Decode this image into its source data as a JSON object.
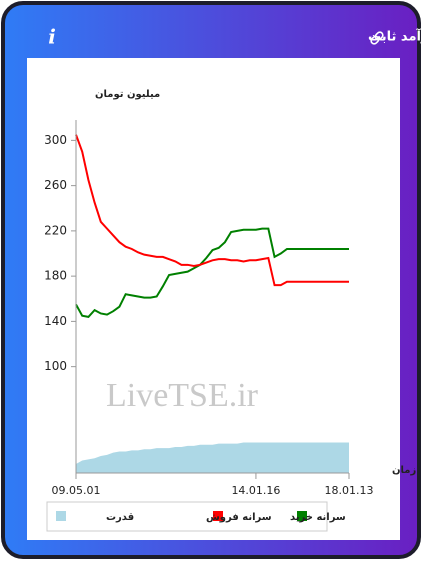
{
  "chart_data": {
    "type": "line",
    "title": "سرانه ی خرید و فروش حقیقی در صندوق های درآمد ثابت",
    "ylabel": "میلیون تومان",
    "xlabel": "زمان",
    "watermark": "LiveTSE.ir",
    "categories": [
      "09.05.01",
      null,
      null,
      null,
      null,
      null,
      null,
      null,
      null,
      null,
      null,
      null,
      null,
      null,
      null,
      null,
      null,
      null,
      null,
      null,
      null,
      null,
      null,
      null,
      null,
      null,
      null,
      null,
      null,
      "14.01.16",
      null,
      null,
      null,
      null,
      null,
      null,
      null,
      null,
      null,
      null,
      null,
      null,
      null,
      null,
      "18.01.13"
    ],
    "ylim": [
      6,
      318
    ],
    "yticks": [
      100,
      140,
      180,
      220,
      260,
      300
    ],
    "series": [
      {
        "name": "سرانه خرید",
        "color": "#008000",
        "values": [
          155,
          145,
          144,
          150,
          147,
          146,
          149,
          153,
          164,
          163,
          162,
          161,
          161,
          162,
          171,
          181,
          182,
          183,
          184,
          187,
          190,
          196,
          203,
          205,
          210,
          219,
          220,
          221,
          221,
          221,
          222,
          222,
          197,
          200,
          204,
          204,
          204,
          204,
          204,
          204,
          204,
          204,
          204,
          204,
          204
        ]
      },
      {
        "name": "سرانه فروش",
        "color": "#ff0000",
        "values": [
          305,
          290,
          265,
          245,
          228,
          222,
          216,
          210,
          206,
          204,
          201,
          199,
          198,
          197,
          197,
          195,
          193,
          190,
          190,
          189,
          190,
          192,
          194,
          195,
          195,
          194,
          194,
          193,
          194,
          194,
          195,
          196,
          172,
          172,
          175,
          175,
          175,
          175,
          175,
          175,
          175,
          175,
          175,
          175,
          175
        ]
      },
      {
        "name": "قدرت",
        "color": "#add8e6",
        "area": true,
        "values": [
          14,
          17,
          18,
          19,
          21,
          22,
          24,
          25,
          25,
          26,
          26,
          27,
          27,
          28,
          28,
          28,
          29,
          29,
          30,
          30,
          31,
          31,
          31,
          32,
          32,
          32,
          32,
          33,
          33,
          33,
          33,
          33,
          33,
          33,
          33,
          33,
          33,
          33,
          33,
          33,
          33,
          33,
          33,
          33,
          33
        ]
      }
    ]
  }
}
